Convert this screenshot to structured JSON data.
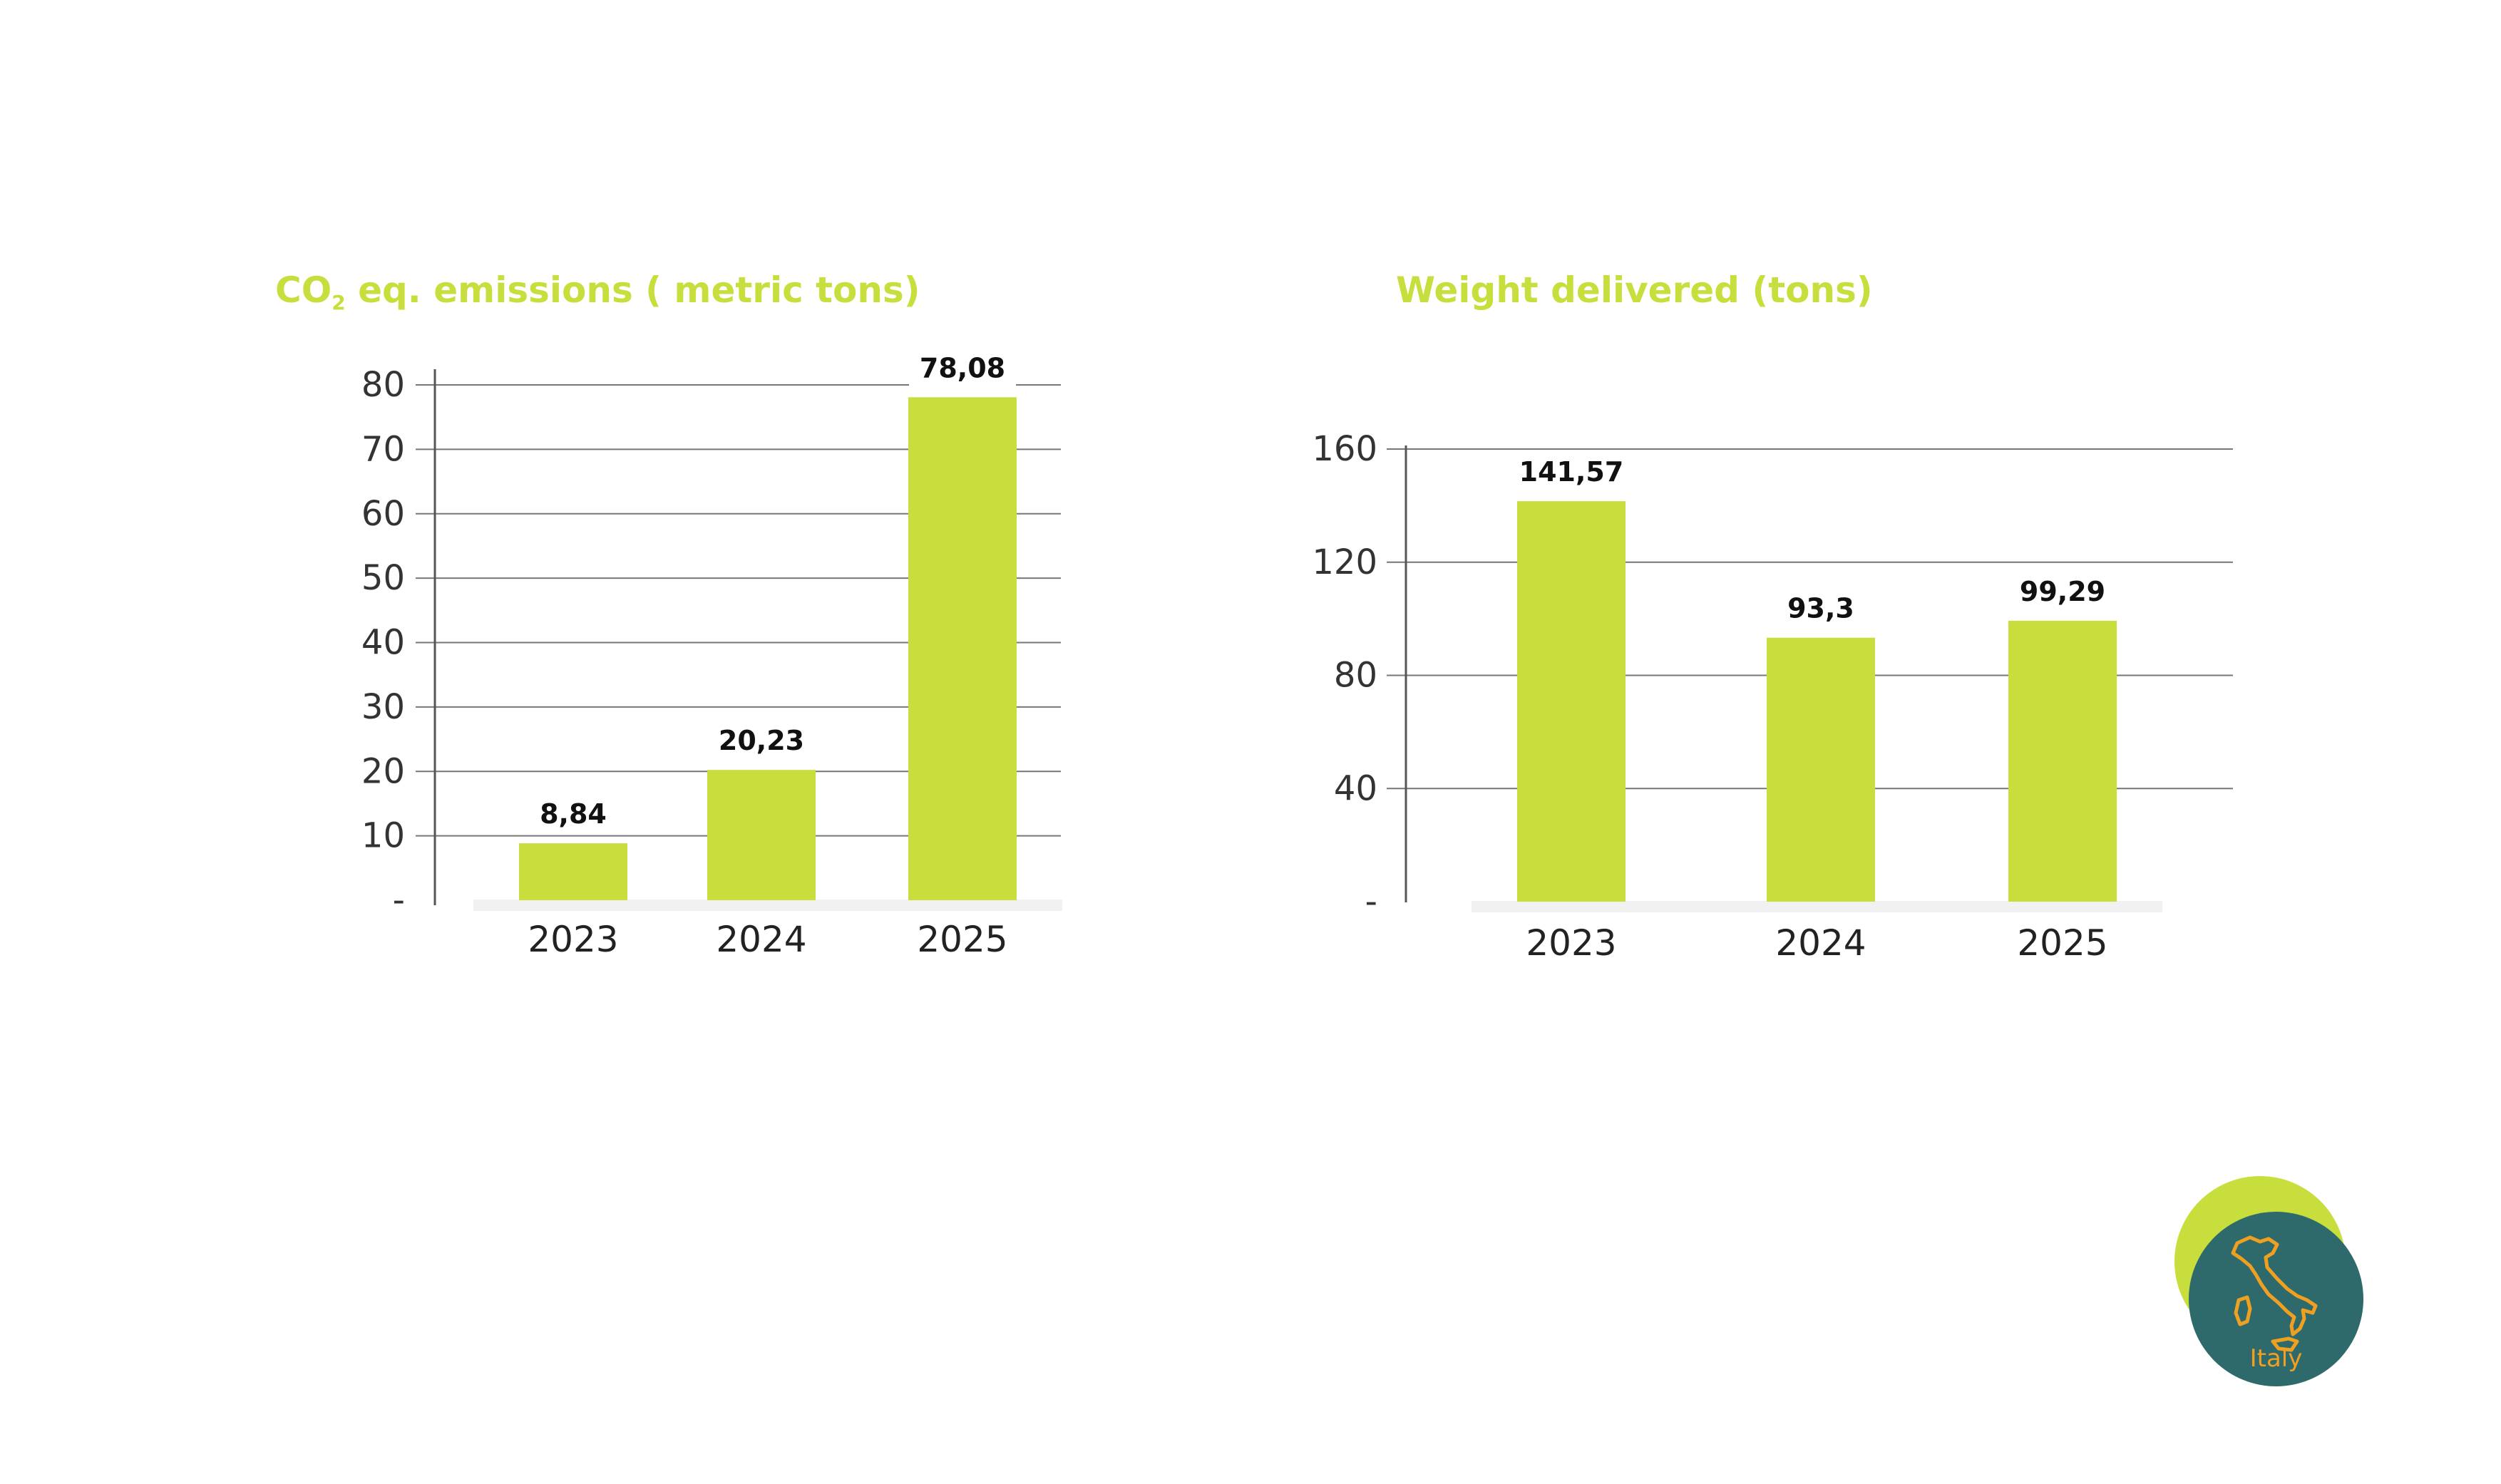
{
  "charts": {
    "emissions": {
      "title_main": "CO",
      "title_sub": "2",
      "title_rest": " eq. emissions ( metric tons)"
    },
    "weight": {
      "title": "Weight delivered (tons)"
    }
  },
  "chart_data": [
    {
      "type": "bar",
      "title": "CO2 eq. emissions ( metric tons)",
      "categories": [
        "2023",
        "2024",
        "2025"
      ],
      "values": [
        8.84,
        20.23,
        78.08
      ],
      "data_labels": [
        "8,84",
        "20,23",
        "78,08"
      ],
      "yticks": [
        "-",
        "10",
        "20",
        "30",
        "40",
        "50",
        "60",
        "70",
        "80"
      ],
      "ylim": [
        0,
        80
      ],
      "grid": true,
      "legend": "none",
      "bar_color": "#c7de3c"
    },
    {
      "type": "bar",
      "title": "Weight delivered (tons)",
      "categories": [
        "2023",
        "2024",
        "2025"
      ],
      "values": [
        141.57,
        93.3,
        99.29
      ],
      "data_labels": [
        "141,57",
        "93,3",
        "99,29"
      ],
      "yticks": [
        "-",
        "40",
        "80",
        "120",
        "160"
      ],
      "ylim": [
        0,
        160
      ],
      "grid": true,
      "legend": "none",
      "bar_color": "#c7de3c"
    }
  ],
  "badge": {
    "label": "Italy",
    "icon": "italy-map-icon",
    "back_color": "#c7de3c",
    "front_color": "#2e6a6b",
    "accent_color": "#f0a020"
  }
}
